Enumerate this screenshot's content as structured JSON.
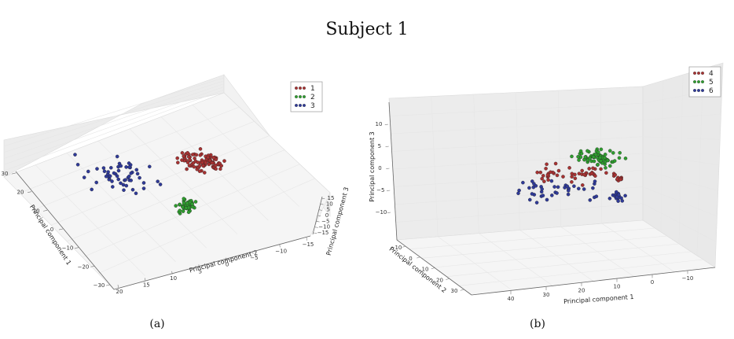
{
  "figure": {
    "title": "Subject 1"
  },
  "chart_data": [
    {
      "type": "scatter",
      "panel_label": "(a)",
      "dimensions": 3,
      "xlabel": "Principal component 1",
      "ylabel": "Principal component 2",
      "zlabel": "Principal component 3",
      "xticks": [
        "30",
        "20",
        "10",
        "0",
        "−10",
        "−20",
        "−30"
      ],
      "yticks": [
        "20",
        "15",
        "10",
        "5",
        "0",
        "−5",
        "−10",
        "−15"
      ],
      "zticks": [
        "15",
        "10",
        "5",
        "0",
        "−5",
        "−10",
        "−15"
      ],
      "legend_position": "top-right",
      "series": [
        {
          "name": "1",
          "color": "#a83232"
        },
        {
          "name": "2",
          "color": "#2e9e2e"
        },
        {
          "name": "3",
          "color": "#2f3a99"
        }
      ]
    },
    {
      "type": "scatter",
      "panel_label": "(b)",
      "dimensions": 3,
      "xlabel": "Principal component 1",
      "ylabel": "Principal component 2",
      "zlabel": "Principal component 3",
      "xticks": [
        "40",
        "30",
        "20",
        "10",
        "0",
        "−10"
      ],
      "yticks": [
        "−10",
        "0",
        "10",
        "20",
        "30"
      ],
      "zticks": [
        "10",
        "5",
        "0",
        "−5",
        "−10"
      ],
      "legend_position": "top-right",
      "series": [
        {
          "name": "4",
          "color": "#a83232"
        },
        {
          "name": "5",
          "color": "#2e9e2e"
        },
        {
          "name": "6",
          "color": "#2f3a99"
        }
      ]
    }
  ]
}
